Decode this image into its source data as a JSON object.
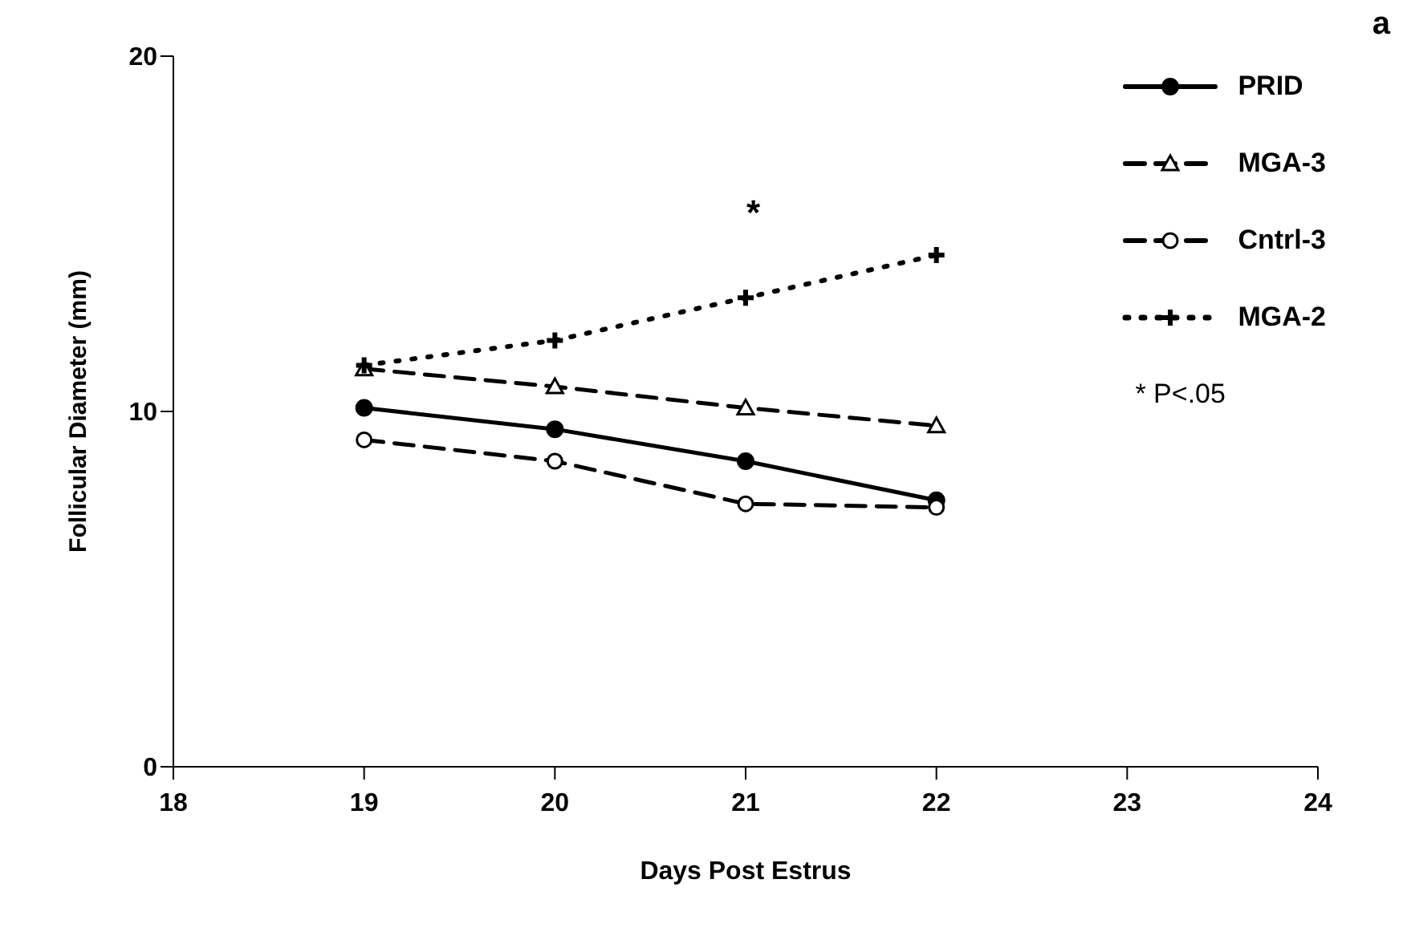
{
  "chart_data": {
    "type": "line",
    "xlabel": "Days Post Estrus",
    "ylabel": "Follicular Diameter (mm)",
    "x": [
      19,
      20,
      21,
      22
    ],
    "xlim": [
      18,
      24
    ],
    "xticks": [
      18,
      19,
      20,
      21,
      22,
      23,
      24
    ],
    "ylim": [
      0,
      20
    ],
    "yticks": [
      0,
      10,
      20
    ],
    "grid": false,
    "legend": "top right",
    "series": [
      {
        "name": "PRID",
        "color": "#000000",
        "values": [
          10.1,
          9.5,
          8.6,
          7.5
        ],
        "marker": "circle",
        "line_style": "solid"
      },
      {
        "name": "MGA-3",
        "color": "#000000",
        "values": [
          11.2,
          10.7,
          10.1,
          9.6
        ],
        "marker": "triangle",
        "line_style": "dashed"
      },
      {
        "name": "Cntrl-3",
        "color": "#000000",
        "values": [
          9.2,
          8.6,
          7.4,
          7.3
        ],
        "marker": "circle-open",
        "line_style": "dashed"
      },
      {
        "name": "MGA-2",
        "color": "#000000",
        "values": [
          11.3,
          12.0,
          13.2,
          14.4
        ],
        "marker": "cross",
        "line_style": "dotted"
      }
    ],
    "annotations": [
      "*",
      "* P<.05",
      "a"
    ]
  }
}
